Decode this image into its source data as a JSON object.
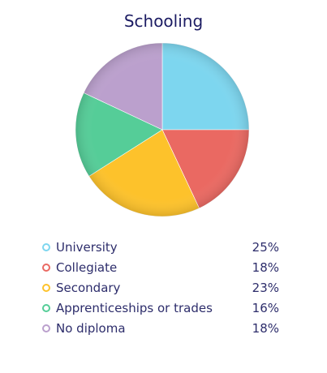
{
  "chart_data": {
    "type": "pie",
    "title": "Schooling",
    "slices": [
      {
        "label": "University",
        "value": 25,
        "display": "25%",
        "color": "#7dd6ef"
      },
      {
        "label": "Collegiate",
        "value": 18,
        "display": "18%",
        "color": "#ea6962"
      },
      {
        "label": "Secondary",
        "value": 23,
        "display": "23%",
        "color": "#fdc22b"
      },
      {
        "label": "Apprenticeships or trades",
        "value": 16,
        "display": "16%",
        "color": "#55cd98"
      },
      {
        "label": "No diploma",
        "value": 18,
        "display": "18%",
        "color": "#bba0cd"
      }
    ],
    "legend_position": "bottom"
  }
}
